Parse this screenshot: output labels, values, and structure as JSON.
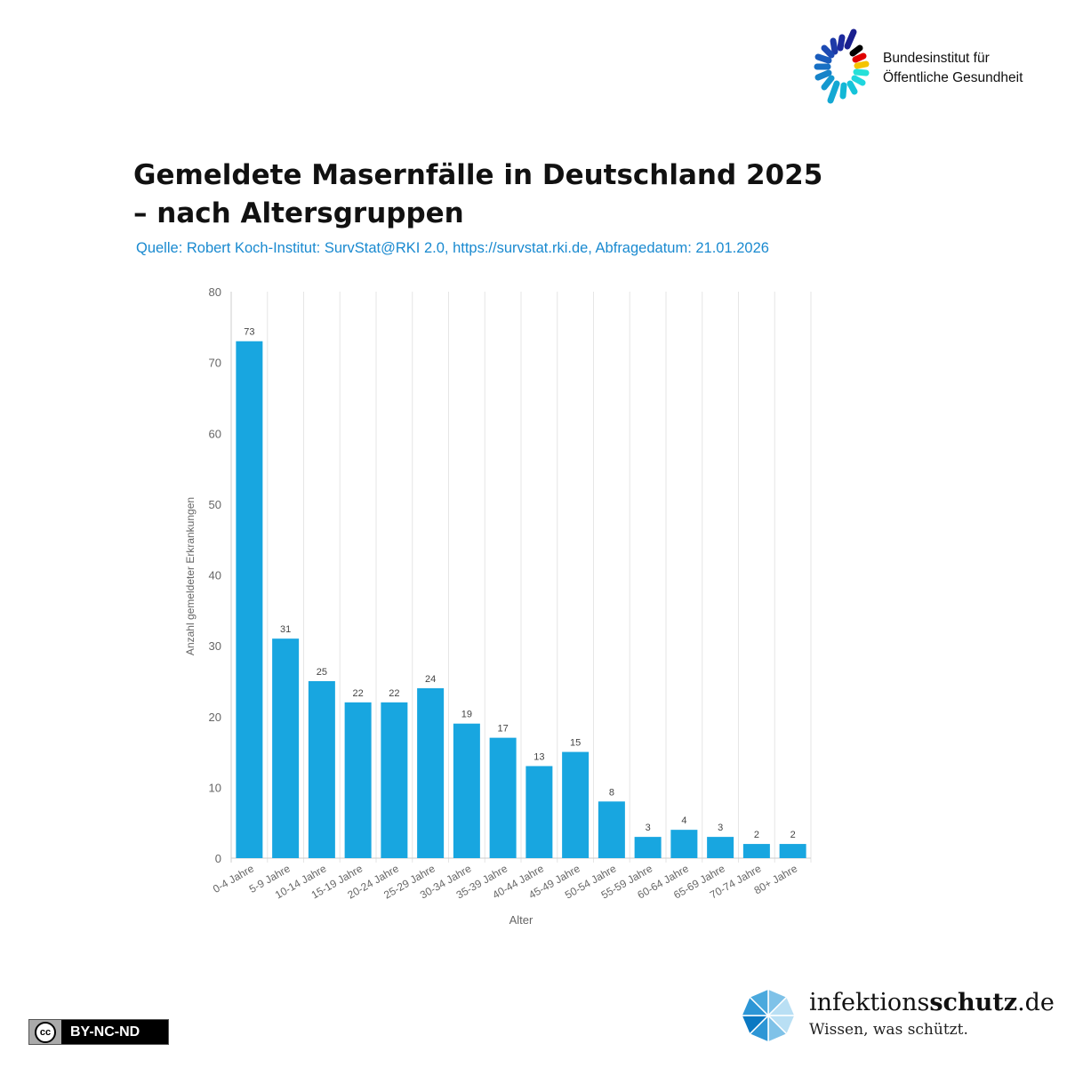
{
  "logo_bfog": {
    "line1": "Bundesinstitut für",
    "line2": "Öffentliche Gesundheit"
  },
  "logo_ifs": {
    "name_regular": "infektions",
    "name_bold": "schutz",
    ".de": ".de",
    "tagline": "Wissen, was schützt."
  },
  "license": {
    "cc": "cc",
    "label": "BY-NC-ND"
  },
  "chart_data": {
    "type": "bar",
    "title": "Gemeldete Masernfälle in Deutschland 2025 – nach Altersgruppen",
    "subtitle": "Quelle: Robert Koch-Institut: SurvStat@RKI 2.0, https://survstat.rki.de, Abfragedatum: 21.01.2026",
    "xlabel": "Alter",
    "ylabel": "Anzahl gemeldeter Erkrankungen",
    "ylim": [
      0,
      80
    ],
    "yticks": [
      0,
      10,
      20,
      30,
      40,
      50,
      60,
      70,
      80
    ],
    "categories": [
      "0-4 Jahre",
      "5-9 Jahre",
      "10-14 Jahre",
      "15-19 Jahre",
      "20-24 Jahre",
      "25-29 Jahre",
      "30-34 Jahre",
      "35-39 Jahre",
      "40-44 Jahre",
      "45-49 Jahre",
      "50-54 Jahre",
      "55-59 Jahre",
      "60-64 Jahre",
      "65-69 Jahre",
      "70-74 Jahre",
      "80+ Jahre"
    ],
    "values": [
      73,
      31,
      25,
      22,
      22,
      24,
      19,
      17,
      13,
      15,
      8,
      3,
      4,
      3,
      2,
      2
    ],
    "color": "#18a6e0",
    "grid": true
  }
}
